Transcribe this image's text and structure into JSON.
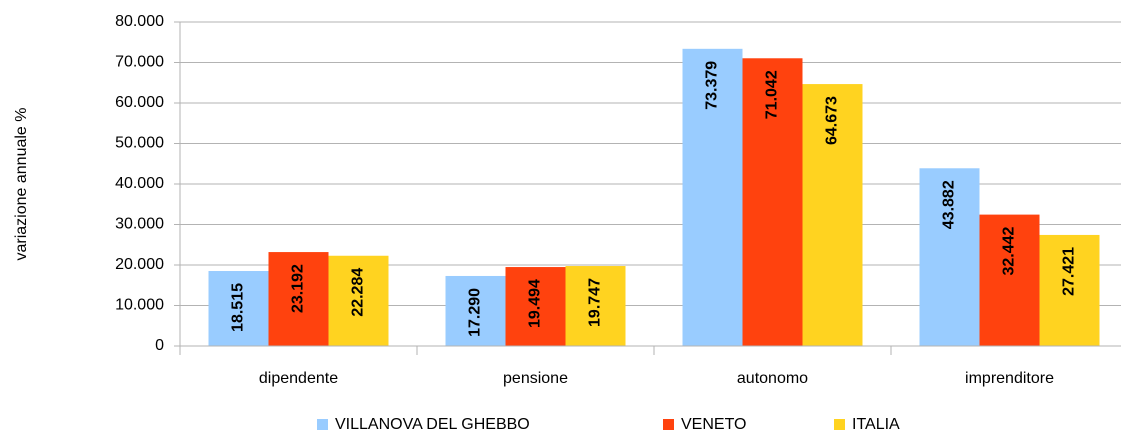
{
  "chart_data": {
    "type": "bar",
    "y_label": "variazione annuale %",
    "categories": [
      "dipendente",
      "pensione",
      "autonomo",
      "imprenditore"
    ],
    "series": [
      {
        "name": "VILLANOVA DEL GHEBBO",
        "color": "#99ccff",
        "values": [
          18.515,
          17.29,
          73.379,
          43.882
        ],
        "value_labels": [
          "18.515",
          "17.290",
          "73.379",
          "43.882"
        ]
      },
      {
        "name": "VENETO",
        "color": "#ff420e",
        "values": [
          23.192,
          19.494,
          71.042,
          32.442
        ],
        "value_labels": [
          "23.192",
          "19.494",
          "71.042",
          "32.442"
        ]
      },
      {
        "name": "ITALIA",
        "color": "#ffd320",
        "values": [
          22.284,
          19.747,
          64.673,
          27.421
        ],
        "value_labels": [
          "22.284",
          "19.747",
          "64.673",
          "27.421"
        ]
      }
    ],
    "ylim": [
      0,
      80
    ],
    "yticks": [
      0,
      {
        "value": 10,
        "label": "10.000"
      },
      {
        "value": 20,
        "label": "20.000"
      },
      {
        "value": 30,
        "label": "30.000"
      },
      {
        "value": 40,
        "label": "40.000"
      },
      {
        "value": 50,
        "label": "50.000"
      },
      {
        "value": 60,
        "label": "60.000"
      },
      {
        "value": 70,
        "label": "70.000"
      },
      {
        "value": 80,
        "label": "80.000"
      }
    ],
    "grid": true,
    "legend": "bottom"
  }
}
